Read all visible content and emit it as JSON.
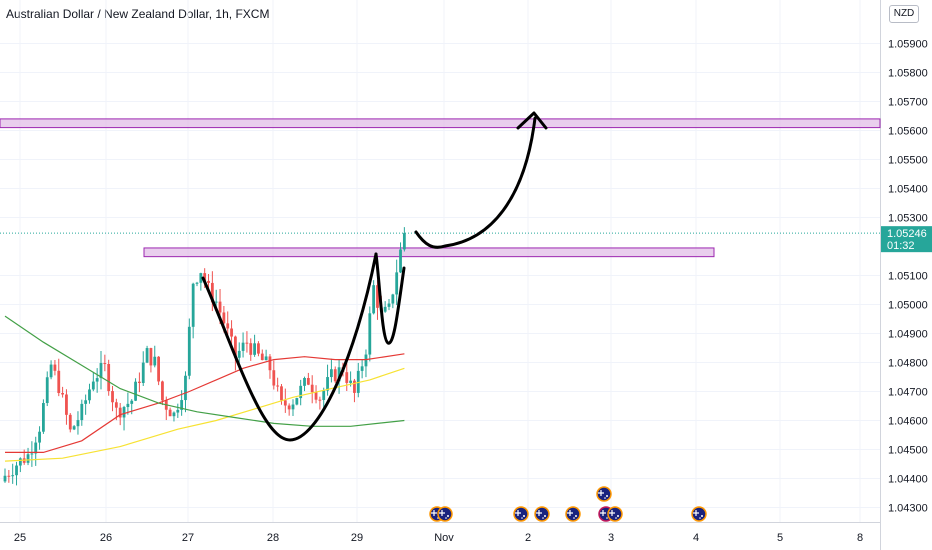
{
  "header": {
    "title": "Australian Dollar / New Zealand Dollar, 1h, FXCM",
    "currency": "NZD"
  },
  "price_label": {
    "price": "1.05246",
    "countdown": "01:32",
    "color": "#26a69a"
  },
  "colors": {
    "up": "#26a69a",
    "down": "#ef5350",
    "zone": "#e1bee7",
    "zone_border": "#9c27b0",
    "ma_red": "#e53935",
    "ma_yellow": "#f7e233",
    "ma_green": "#43a047"
  },
  "events": {
    "icon": "australia-flag-icon",
    "days": [
      "Nov",
      "2",
      "3",
      "4"
    ]
  },
  "chart_data": {
    "type": "candlestick",
    "title": "Australian Dollar / New Zealand Dollar, 1h, FXCM",
    "ylabel": "NZD",
    "ylim": [
      1.0425,
      1.0605
    ],
    "yticks": [
      1.059,
      1.058,
      1.057,
      1.056,
      1.055,
      1.054,
      1.053,
      1.051,
      1.05,
      1.049,
      1.048,
      1.047,
      1.046,
      1.045,
      1.044,
      1.043
    ],
    "ytick_labels": [
      "1.05900",
      "1.05800",
      "1.05700",
      "1.05600",
      "1.05500",
      "1.05400",
      "1.05300",
      "1.05100",
      "1.05000",
      "1.04900",
      "1.04800",
      "1.04700",
      "1.04600",
      "1.04500",
      "1.04400",
      "1.04300"
    ],
    "xticks": [
      "25",
      "26",
      "27",
      "28",
      "29",
      "Nov",
      "2",
      "3",
      "4",
      "5",
      "8"
    ],
    "last_price": 1.05246,
    "zones": [
      {
        "name": "target-zone",
        "from": 1.0561,
        "to": 1.0564
      },
      {
        "name": "neckline-zone",
        "from": 1.05165,
        "to": 1.05195
      }
    ],
    "anchors": [
      {
        "i": 0,
        "p": 1.0441
      },
      {
        "i": 3,
        "p": 1.0445
      },
      {
        "i": 6,
        "p": 1.0448
      },
      {
        "i": 9,
        "p": 1.0458
      },
      {
        "i": 12,
        "p": 1.0479
      },
      {
        "i": 14,
        "p": 1.0472
      },
      {
        "i": 17,
        "p": 1.0456
      },
      {
        "i": 20,
        "p": 1.0463
      },
      {
        "i": 23,
        "p": 1.0475
      },
      {
        "i": 26,
        "p": 1.0478
      },
      {
        "i": 29,
        "p": 1.0463
      },
      {
        "i": 33,
        "p": 1.0467
      },
      {
        "i": 37,
        "p": 1.0483
      },
      {
        "i": 39,
        "p": 1.048
      },
      {
        "i": 41,
        "p": 1.0467
      },
      {
        "i": 44,
        "p": 1.0462
      },
      {
        "i": 47,
        "p": 1.0474
      },
      {
        "i": 49,
        "p": 1.0508
      },
      {
        "i": 51,
        "p": 1.0512
      },
      {
        "i": 53,
        "p": 1.0505
      },
      {
        "i": 55,
        "p": 1.0501
      },
      {
        "i": 57,
        "p": 1.0494
      },
      {
        "i": 60,
        "p": 1.0482
      },
      {
        "i": 63,
        "p": 1.0487
      },
      {
        "i": 66,
        "p": 1.0482
      },
      {
        "i": 69,
        "p": 1.0478
      },
      {
        "i": 72,
        "p": 1.0465
      },
      {
        "i": 75,
        "p": 1.0467
      },
      {
        "i": 79,
        "p": 1.0474
      },
      {
        "i": 82,
        "p": 1.0468
      },
      {
        "i": 85,
        "p": 1.0475
      },
      {
        "i": 88,
        "p": 1.0478
      },
      {
        "i": 91,
        "p": 1.0469
      },
      {
        "i": 94,
        "p": 1.0485
      },
      {
        "i": 96,
        "p": 1.0506
      },
      {
        "i": 98,
        "p": 1.0496
      },
      {
        "i": 100,
        "p": 1.0498
      },
      {
        "i": 102,
        "p": 1.0512
      },
      {
        "i": 104,
        "p": 1.05246
      }
    ],
    "series": [
      {
        "name": "",
        "color": "#e53935",
        "points": [
          [
            0,
            1.0449
          ],
          [
            10,
            1.0449
          ],
          [
            20,
            1.0453
          ],
          [
            30,
            1.0462
          ],
          [
            40,
            1.0466
          ],
          [
            48,
            1.047
          ],
          [
            55,
            1.0474
          ],
          [
            62,
            1.0478
          ],
          [
            70,
            1.0481
          ],
          [
            78,
            1.0482
          ],
          [
            86,
            1.0481
          ],
          [
            94,
            1.0481
          ],
          [
            104,
            1.0483
          ]
        ]
      },
      {
        "name": "",
        "color": "#f7e233",
        "points": [
          [
            0,
            1.0446
          ],
          [
            15,
            1.0447
          ],
          [
            30,
            1.0451
          ],
          [
            45,
            1.0457
          ],
          [
            55,
            1.046
          ],
          [
            65,
            1.0464
          ],
          [
            75,
            1.0468
          ],
          [
            85,
            1.0471
          ],
          [
            95,
            1.0474
          ],
          [
            104,
            1.0478
          ]
        ]
      },
      {
        "name": "",
        "color": "#43a047",
        "points": [
          [
            0,
            1.0496
          ],
          [
            10,
            1.0487
          ],
          [
            20,
            1.0479
          ],
          [
            30,
            1.0471
          ],
          [
            40,
            1.0466
          ],
          [
            50,
            1.0463
          ],
          [
            60,
            1.0461
          ],
          [
            70,
            1.0459
          ],
          [
            80,
            1.0458
          ],
          [
            90,
            1.0458
          ],
          [
            104,
            1.046
          ]
        ]
      }
    ]
  }
}
